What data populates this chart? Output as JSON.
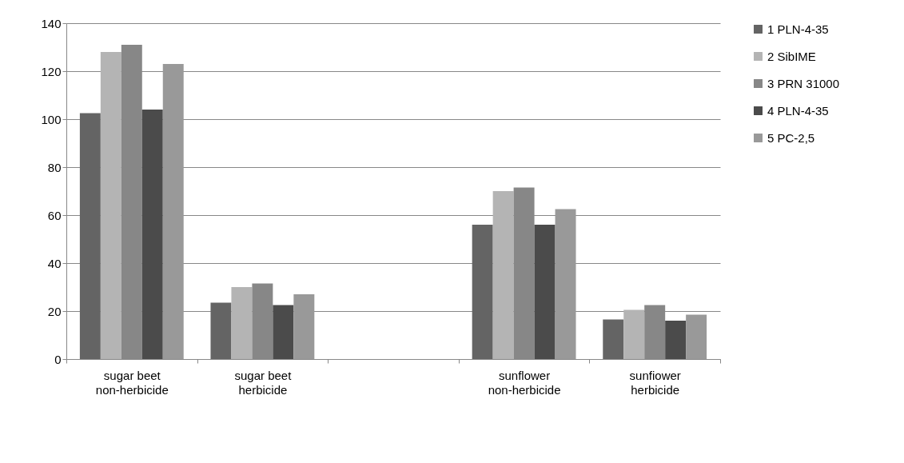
{
  "chart_data": {
    "type": "bar",
    "categories": [
      "sugar beet\nnon-herbicide",
      "sugar beet\nherbicide",
      null,
      "sunflower\nnon-herbicide",
      "sunfiower\nherbicide"
    ],
    "series": [
      {
        "name": "1 PLN-4-35",
        "color": "#646464",
        "values": [
          102.5,
          23.5,
          null,
          56,
          16.5
        ]
      },
      {
        "name": "2 SibIME",
        "color": "#b4b4b4",
        "values": [
          128,
          30,
          null,
          70,
          20.5
        ]
      },
      {
        "name": "3 PRN 31000",
        "color": "#878787",
        "values": [
          131,
          31.5,
          null,
          71.5,
          22.5
        ]
      },
      {
        "name": "4 PLN-4-35",
        "color": "#4b4b4b",
        "values": [
          104,
          22.5,
          null,
          56,
          16
        ]
      },
      {
        "name": "5 PC-2,5",
        "color": "#999999",
        "values": [
          123,
          27,
          null,
          62.5,
          18.5
        ]
      }
    ],
    "ylim": [
      0,
      140
    ],
    "yticks": [
      0,
      20,
      40,
      60,
      80,
      100,
      120,
      140
    ],
    "grid": "y",
    "legend": "right"
  }
}
